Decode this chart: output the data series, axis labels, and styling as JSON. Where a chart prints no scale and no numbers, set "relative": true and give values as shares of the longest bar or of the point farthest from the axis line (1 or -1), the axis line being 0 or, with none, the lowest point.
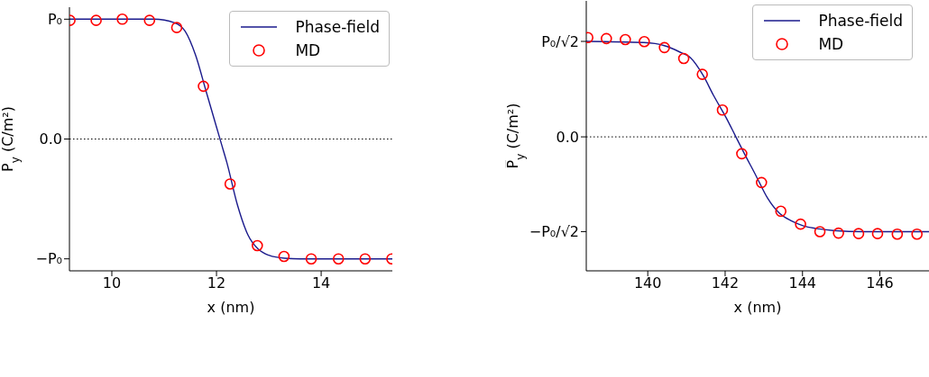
{
  "chart_data": [
    {
      "type": "line",
      "relative": true,
      "xlabel": "x (nm)",
      "ylabel": "P$_{y}$ (C/m²)",
      "xlim": [
        9.19,
        15.36
      ],
      "xticks": [
        10,
        12,
        14
      ],
      "legend": "top right",
      "annotations": [
        "P₀",
        "0.0",
        "−P₀"
      ],
      "ref_lines": [
        {
          "axis": "y",
          "value": 0,
          "label": null,
          "color": "#000000",
          "line_style": "dotted"
        }
      ],
      "series": [
        {
          "name": "Phase-field",
          "color": "#1a1a8c",
          "line_style": "solid",
          "marker": "none",
          "x": [
            9.19,
            10.8,
            11.2,
            11.4,
            11.6,
            11.8,
            12.0,
            12.1,
            12.2,
            12.4,
            12.6,
            12.8,
            13.0,
            13.3,
            13.6,
            15.36
          ],
          "values": [
            1,
            1,
            0.97,
            0.9,
            0.7,
            0.4,
            0.1,
            -0.05,
            -0.2,
            -0.55,
            -0.8,
            -0.92,
            -0.97,
            -0.995,
            -1,
            -1
          ]
        },
        {
          "name": "MD",
          "type": "scatter",
          "color": "#ff0000",
          "marker": "circle",
          "x": [
            9.2,
            9.7,
            10.2,
            10.72,
            11.24,
            11.75,
            12.26,
            12.78,
            13.29,
            13.81,
            14.33,
            14.84,
            15.35
          ],
          "values": [
            0.99,
            0.99,
            1.0,
            0.99,
            0.93,
            0.44,
            -0.375,
            -0.89,
            -0.98,
            -1.0,
            -1.0,
            -1.0,
            -1.0
          ]
        }
      ]
    },
    {
      "type": "line",
      "relative": true,
      "xlabel": "x (nm)",
      "ylabel": "P̅$_{y}$ (C/m²)",
      "xlim": [
        138.41,
        147.27
      ],
      "xticks": [
        140,
        142,
        144,
        146
      ],
      "legend": "top right",
      "annotations": [
        "P₀/√2",
        "0.0",
        "−P₀/√2"
      ],
      "ref_lines": [
        {
          "axis": "y",
          "value": 0,
          "label": null,
          "color": "#000000",
          "line_style": "dotted"
        }
      ],
      "series": [
        {
          "name": "Phase-field",
          "color": "#1a1a8c",
          "line_style": "solid",
          "marker": "none",
          "x": [
            138.41,
            139.9,
            140.43,
            140.8,
            141.1,
            141.43,
            141.7,
            142.03,
            142.26,
            142.49,
            142.8,
            143.1,
            143.41,
            143.72,
            144.03,
            144.34,
            144.8,
            145.6,
            147.27
          ],
          "values": [
            0.962,
            0.95,
            0.919,
            0.86,
            0.798,
            0.62,
            0.418,
            0.19,
            0.014,
            -0.163,
            -0.393,
            -0.62,
            -0.773,
            -0.848,
            -0.898,
            -0.923,
            -0.944,
            -0.955,
            -0.955
          ]
        },
        {
          "name": "MD",
          "type": "scatter",
          "color": "#ff0000",
          "marker": "circle",
          "x": [
            138.45,
            138.93,
            139.42,
            139.91,
            140.43,
            140.93,
            141.41,
            141.93,
            142.43,
            142.94,
            143.44,
            143.95,
            144.45,
            144.93,
            145.45,
            145.94,
            146.45,
            146.96
          ],
          "values": [
            1,
            0.99,
            0.98,
            0.96,
            0.9,
            0.79,
            0.63,
            0.27,
            -0.17,
            -0.46,
            -0.75,
            -0.88,
            -0.955,
            -0.97,
            -0.975,
            -0.975,
            -0.98,
            -0.98
          ]
        }
      ]
    }
  ]
}
